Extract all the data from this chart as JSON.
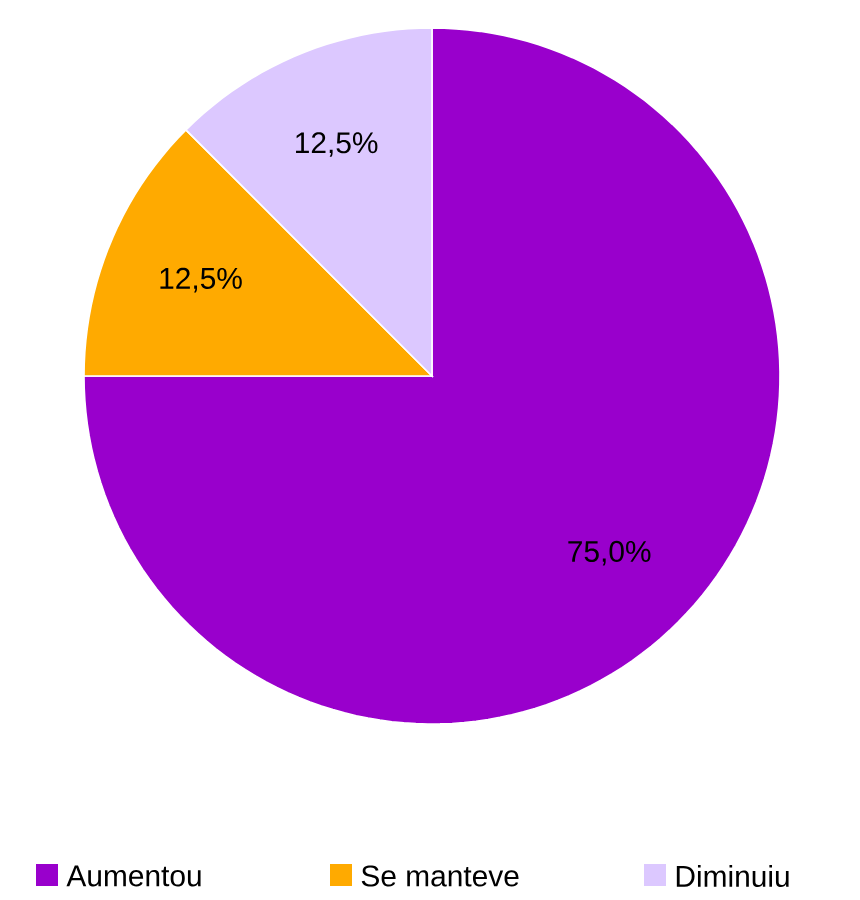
{
  "chart_data": {
    "type": "pie",
    "categories": [
      "Aumentou",
      "Se manteve",
      "Diminuiu"
    ],
    "values": [
      75.0,
      12.5,
      12.5
    ],
    "colors": [
      "#9900cc",
      "#ffaa00",
      "#dcc8ff"
    ],
    "value_labels": [
      "75,0%",
      "12,5%",
      "12,5%"
    ],
    "legend": "bottom"
  }
}
